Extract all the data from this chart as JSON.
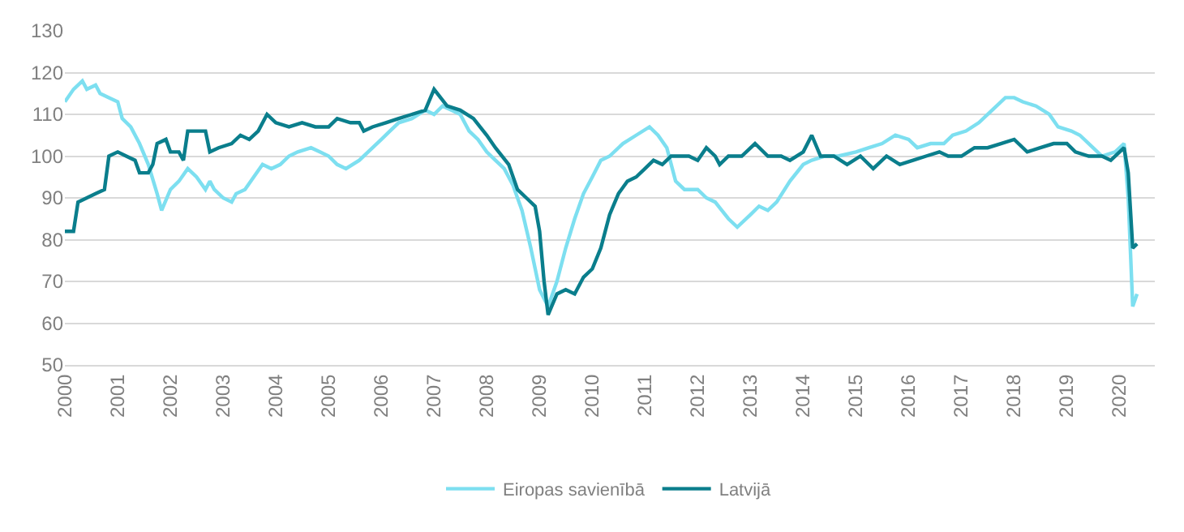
{
  "chart_data": {
    "type": "line",
    "xlim": [
      "2000-01",
      "2020-09"
    ],
    "xticks": [
      "2000",
      "2001",
      "2002",
      "2003",
      "2004",
      "2005",
      "2006",
      "2007",
      "2008",
      "2009",
      "2010",
      "2011",
      "2012",
      "2013",
      "2014",
      "2015",
      "2016",
      "2017",
      "2018",
      "2019",
      "2020"
    ],
    "ylim": [
      50,
      130
    ],
    "yticks": [
      50,
      60,
      70,
      80,
      90,
      100,
      110,
      120,
      130
    ],
    "grid": "y",
    "legend": "bottom",
    "marker": "none",
    "line_style": "solid",
    "series": [
      {
        "name": "Eiropas savienībā",
        "color": "#7ddff0",
        "x": [
          "2000-01",
          "2000-03",
          "2000-05",
          "2000-06",
          "2000-08",
          "2000-09",
          "2000-11",
          "2001-01",
          "2001-02",
          "2001-04",
          "2001-06",
          "2001-08",
          "2001-10",
          "2001-11",
          "2002-01",
          "2002-03",
          "2002-05",
          "2002-07",
          "2002-09",
          "2002-10",
          "2002-11",
          "2003-01",
          "2003-03",
          "2003-04",
          "2003-06",
          "2003-08",
          "2003-10",
          "2003-12",
          "2004-02",
          "2004-04",
          "2004-06",
          "2004-09",
          "2004-11",
          "2005-01",
          "2005-03",
          "2005-05",
          "2005-08",
          "2005-10",
          "2006-01",
          "2006-03",
          "2006-05",
          "2006-08",
          "2006-11",
          "2007-01",
          "2007-03",
          "2007-05",
          "2007-07",
          "2007-09",
          "2007-11",
          "2008-01",
          "2008-03",
          "2008-05",
          "2008-07",
          "2008-09",
          "2008-11",
          "2009-01",
          "2009-03",
          "2009-05",
          "2009-07",
          "2009-09",
          "2009-11",
          "2010-01",
          "2010-03",
          "2010-05",
          "2010-08",
          "2010-11",
          "2011-02",
          "2011-04",
          "2011-06",
          "2011-08",
          "2011-10",
          "2012-01",
          "2012-03",
          "2012-05",
          "2012-08",
          "2012-10",
          "2013-01",
          "2013-03",
          "2013-05",
          "2013-07",
          "2013-10",
          "2014-01",
          "2014-03",
          "2014-06",
          "2014-09",
          "2015-01",
          "2015-04",
          "2015-07",
          "2015-10",
          "2016-01",
          "2016-03",
          "2016-06",
          "2016-09",
          "2016-11",
          "2017-02",
          "2017-05",
          "2017-08",
          "2017-11",
          "2018-01",
          "2018-03",
          "2018-06",
          "2018-09",
          "2018-11",
          "2019-02",
          "2019-04",
          "2019-07",
          "2019-09",
          "2019-12",
          "2020-02",
          "2020-03",
          "2020-04",
          "2020-05"
        ],
        "values": [
          113,
          116,
          118,
          116,
          117,
          115,
          114,
          113,
          109,
          107,
          103,
          98,
          91,
          87,
          92,
          94,
          97,
          95,
          92,
          94,
          92,
          90,
          89,
          91,
          92,
          95,
          98,
          97,
          98,
          100,
          101,
          102,
          101,
          100,
          98,
          97,
          99,
          101,
          104,
          106,
          108,
          109,
          111,
          110,
          112,
          111,
          110,
          106,
          104,
          101,
          99,
          97,
          93,
          87,
          78,
          68,
          64,
          70,
          78,
          85,
          91,
          95,
          99,
          100,
          103,
          105,
          107,
          105,
          102,
          94,
          92,
          92,
          90,
          89,
          85,
          83,
          86,
          88,
          87,
          89,
          94,
          98,
          99,
          100,
          100,
          101,
          102,
          103,
          105,
          104,
          102,
          103,
          103,
          105,
          106,
          108,
          111,
          114,
          114,
          113,
          112,
          110,
          107,
          106,
          105,
          102,
          100,
          101,
          103,
          90,
          64,
          67
        ]
      },
      {
        "name": "Latvijā",
        "color": "#0a7e8c",
        "x": [
          "2000-01",
          "2000-03",
          "2000-04",
          "2000-06",
          "2000-08",
          "2000-10",
          "2000-11",
          "2001-01",
          "2001-03",
          "2001-05",
          "2001-06",
          "2001-08",
          "2001-09",
          "2001-10",
          "2001-12",
          "2002-01",
          "2002-03",
          "2002-04",
          "2002-05",
          "2002-07",
          "2002-09",
          "2002-10",
          "2002-12",
          "2003-03",
          "2003-05",
          "2003-07",
          "2003-09",
          "2003-11",
          "2004-01",
          "2004-04",
          "2004-07",
          "2004-10",
          "2005-01",
          "2005-03",
          "2005-06",
          "2005-08",
          "2005-09",
          "2005-11",
          "2006-02",
          "2006-05",
          "2006-08",
          "2006-11",
          "2007-01",
          "2007-04",
          "2007-07",
          "2007-10",
          "2008-01",
          "2008-03",
          "2008-06",
          "2008-08",
          "2008-10",
          "2008-12",
          "2009-01",
          "2009-02",
          "2009-03",
          "2009-05",
          "2009-07",
          "2009-09",
          "2009-11",
          "2010-01",
          "2010-03",
          "2010-05",
          "2010-07",
          "2010-09",
          "2010-11",
          "2011-01",
          "2011-03",
          "2011-05",
          "2011-07",
          "2011-09",
          "2011-11",
          "2012-01",
          "2012-03",
          "2012-05",
          "2012-06",
          "2012-08",
          "2012-11",
          "2013-02",
          "2013-05",
          "2013-08",
          "2013-10",
          "2014-01",
          "2014-03",
          "2014-05",
          "2014-08",
          "2014-11",
          "2015-02",
          "2015-05",
          "2015-08",
          "2015-11",
          "2016-02",
          "2016-05",
          "2016-08",
          "2016-10",
          "2017-01",
          "2017-04",
          "2017-07",
          "2017-10",
          "2018-01",
          "2018-04",
          "2018-07",
          "2018-10",
          "2019-01",
          "2019-03",
          "2019-06",
          "2019-09",
          "2019-11",
          "2020-01",
          "2020-02",
          "2020-03",
          "2020-04",
          "2020-05"
        ],
        "values": [
          82,
          82,
          89,
          90,
          91,
          92,
          100,
          101,
          100,
          99,
          96,
          96,
          98,
          103,
          104,
          101,
          101,
          99,
          106,
          106,
          106,
          101,
          102,
          103,
          105,
          104,
          106,
          110,
          108,
          107,
          108,
          107,
          107,
          109,
          108,
          108,
          106,
          107,
          108,
          109,
          110,
          111,
          116,
          112,
          111,
          109,
          105,
          102,
          98,
          92,
          90,
          88,
          82,
          70,
          62,
          67,
          68,
          67,
          71,
          73,
          78,
          86,
          91,
          94,
          95,
          97,
          99,
          98,
          100,
          100,
          100,
          99,
          102,
          100,
          98,
          100,
          100,
          103,
          100,
          100,
          99,
          101,
          105,
          100,
          100,
          98,
          100,
          97,
          100,
          98,
          99,
          100,
          101,
          100,
          100,
          102,
          102,
          103,
          104,
          101,
          102,
          103,
          103,
          101,
          100,
          100,
          99,
          101,
          102,
          96,
          78,
          79
        ]
      }
    ]
  }
}
